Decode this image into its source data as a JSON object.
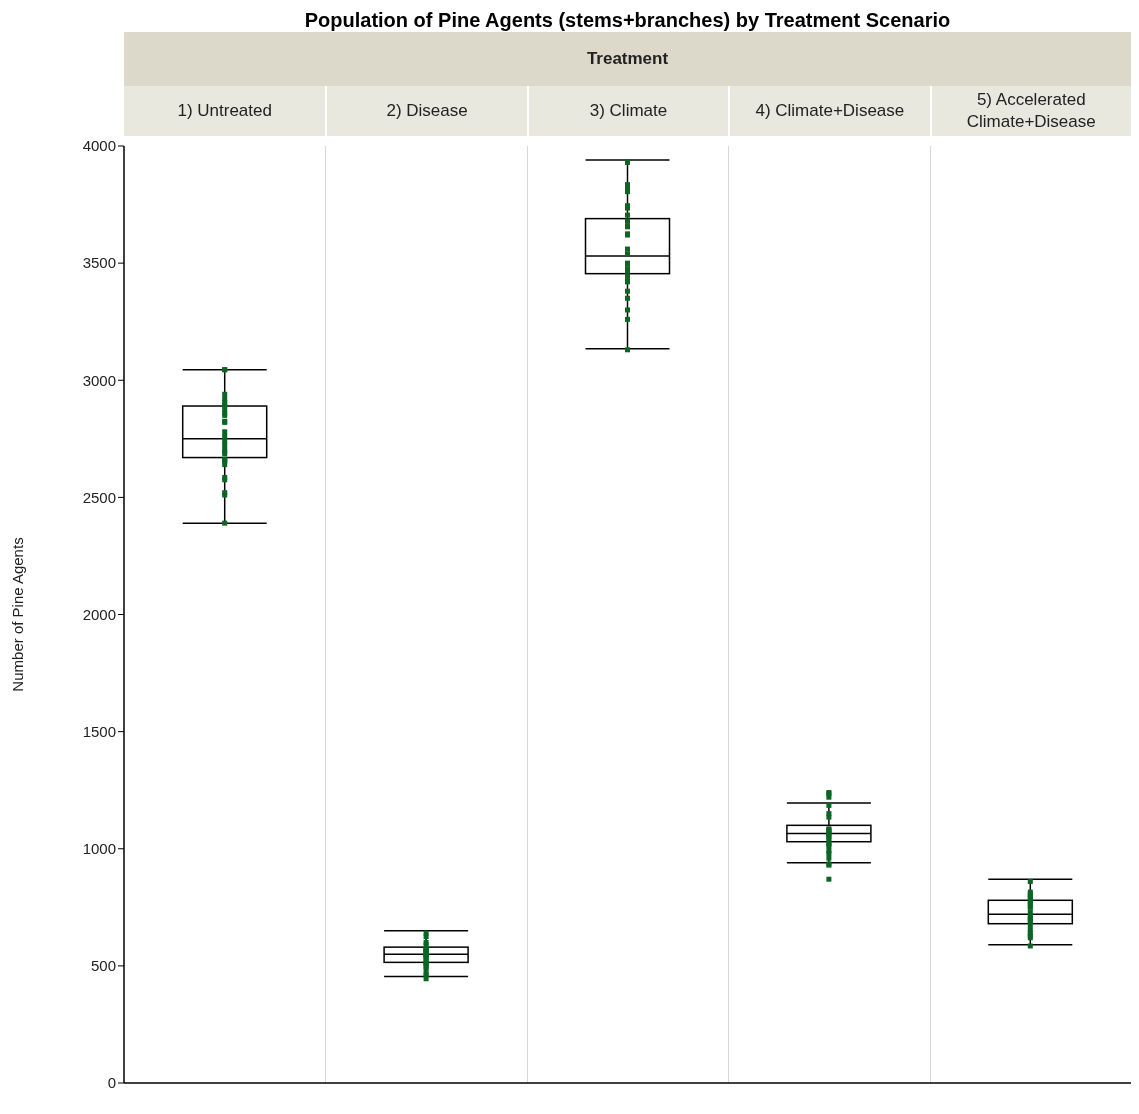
{
  "chart_data": {
    "type": "box",
    "title": "Population of Pine Agents (stems+branches) by Treatment Scenario",
    "xlabel": "Treatment",
    "ylabel": "Number of Pine Agents",
    "categories": [
      "1) Untreated",
      "2) Disease",
      "3) Climate",
      "4) Climate+Disease",
      "5) Accelerated Climate+Disease"
    ],
    "boxes": [
      {
        "low": 2390,
        "q1": 2670,
        "median": 2750,
        "q3": 2890,
        "high": 3045
      },
      {
        "low": 455,
        "q1": 515,
        "median": 550,
        "q3": 580,
        "high": 650
      },
      {
        "low": 3135,
        "q1": 3455,
        "median": 3530,
        "q3": 3690,
        "high": 3940
      },
      {
        "low": 940,
        "q1": 1030,
        "median": 1065,
        "q3": 1100,
        "high": 1195
      },
      {
        "low": 590,
        "q1": 680,
        "median": 720,
        "q3": 780,
        "high": 870
      }
    ],
    "ylim": [
      0,
      4000
    ],
    "yticks": [
      0,
      500,
      1000,
      1500,
      2000,
      2500,
      3000,
      3500,
      4000
    ],
    "series": [
      {
        "type": "scatter",
        "color": "#0b6623",
        "marker": "square",
        "x": [
          "1) Untreated",
          "1) Untreated",
          "1) Untreated",
          "1) Untreated",
          "1) Untreated",
          "1) Untreated",
          "1) Untreated",
          "1) Untreated",
          "1) Untreated",
          "1) Untreated",
          "1) Untreated",
          "1) Untreated",
          "1) Untreated",
          "1) Untreated",
          "1) Untreated",
          "1) Untreated",
          "1) Untreated",
          "1) Untreated",
          "1) Untreated",
          "1) Untreated",
          "1) Untreated",
          "1) Untreated",
          "1) Untreated",
          "1) Untreated",
          "1) Untreated",
          "1) Untreated",
          "1) Untreated",
          "2) Disease",
          "2) Disease",
          "2) Disease",
          "2) Disease",
          "2) Disease",
          "2) Disease",
          "2) Disease",
          "2) Disease",
          "2) Disease",
          "2) Disease",
          "2) Disease",
          "2) Disease",
          "2) Disease",
          "2) Disease",
          "2) Disease",
          "2) Disease",
          "2) Disease",
          "2) Disease",
          "2) Disease",
          "2) Disease",
          "2) Disease",
          "2) Disease",
          "2) Disease",
          "3) Climate",
          "3) Climate",
          "3) Climate",
          "3) Climate",
          "3) Climate",
          "3) Climate",
          "3) Climate",
          "3) Climate",
          "3) Climate",
          "3) Climate",
          "3) Climate",
          "3) Climate",
          "3) Climate",
          "3) Climate",
          "3) Climate",
          "3) Climate",
          "3) Climate",
          "3) Climate",
          "3) Climate",
          "3) Climate",
          "3) Climate",
          "3) Climate",
          "3) Climate",
          "3) Climate",
          "3) Climate",
          "3) Climate",
          "4) Climate+Disease",
          "4) Climate+Disease",
          "4) Climate+Disease",
          "4) Climate+Disease",
          "4) Climate+Disease",
          "4) Climate+Disease",
          "4) Climate+Disease",
          "4) Climate+Disease",
          "4) Climate+Disease",
          "4) Climate+Disease",
          "4) Climate+Disease",
          "4) Climate+Disease",
          "4) Climate+Disease",
          "4) Climate+Disease",
          "4) Climate+Disease",
          "4) Climate+Disease",
          "4) Climate+Disease",
          "4) Climate+Disease",
          "4) Climate+Disease",
          "4) Climate+Disease",
          "4) Climate+Disease",
          "4) Climate+Disease",
          "5) Accelerated Climate+Disease",
          "5) Accelerated Climate+Disease",
          "5) Accelerated Climate+Disease",
          "5) Accelerated Climate+Disease",
          "5) Accelerated Climate+Disease",
          "5) Accelerated Climate+Disease",
          "5) Accelerated Climate+Disease",
          "5) Accelerated Climate+Disease",
          "5) Accelerated Climate+Disease",
          "5) Accelerated Climate+Disease",
          "5) Accelerated Climate+Disease",
          "5) Accelerated Climate+Disease",
          "5) Accelerated Climate+Disease",
          "5) Accelerated Climate+Disease",
          "5) Accelerated Climate+Disease",
          "5) Accelerated Climate+Disease",
          "5) Accelerated Climate+Disease",
          "5) Accelerated Climate+Disease",
          "5) Accelerated Climate+Disease",
          "5) Accelerated Climate+Disease"
        ],
        "values": [
          3045,
          3045,
          2940,
          2920,
          2905,
          2895,
          2875,
          2860,
          2850,
          2825,
          2820,
          2780,
          2760,
          2740,
          2725,
          2705,
          2695,
          2685,
          2660,
          2660,
          2655,
          2640,
          2585,
          2575,
          2520,
          2510,
          2390,
          640,
          625,
          600,
          590,
          575,
          570,
          568,
          565,
          560,
          555,
          550,
          545,
          540,
          535,
          525,
          515,
          510,
          505,
          495,
          485,
          465,
          460,
          445,
          3930,
          3835,
          3820,
          3805,
          3745,
          3735,
          3705,
          3680,
          3660,
          3655,
          3625,
          3620,
          3560,
          3540,
          3500,
          3495,
          3475,
          3465,
          3445,
          3425,
          3420,
          3380,
          3350,
          3300,
          3260,
          3130,
          1240,
          1235,
          1220,
          1185,
          1150,
          1135,
          1085,
          1080,
          1075,
          1065,
          1060,
          1050,
          1040,
          1025,
          1020,
          1010,
          990,
          980,
          960,
          935,
          930,
          870,
          860,
          815,
          805,
          795,
          790,
          775,
          770,
          755,
          750,
          730,
          715,
          705,
          695,
          690,
          675,
          655,
          640,
          630,
          620,
          585
        ]
      }
    ]
  }
}
